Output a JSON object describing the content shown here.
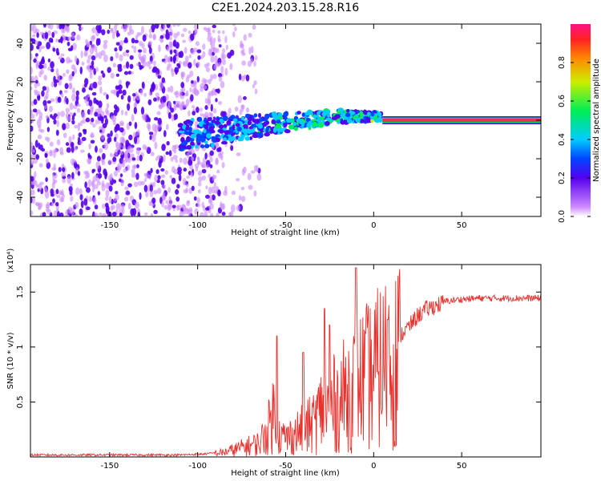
{
  "title": "C2E1.2024.203.15.28.R16",
  "colors": {
    "snr_line": "#e8302c",
    "frame": "#000000",
    "ridge": "#e8305a",
    "ridge_halo": "#10d060"
  },
  "chart_data": [
    {
      "type": "heatmap",
      "xlabel": "Height of straight line (km)",
      "ylabel": "Frequency (Hz)",
      "xlim": [
        -195,
        95
      ],
      "ylim": [
        -50,
        50
      ],
      "x_ticks": [
        -150,
        -100,
        -50,
        0,
        50
      ],
      "y_ticks": [
        -40,
        -20,
        0,
        20,
        40
      ],
      "colorbar": {
        "label": "Normalized spectral amplitude",
        "range": [
          0,
          1
        ],
        "ticks": [
          "0.0",
          "0.2",
          "0.4",
          "0.6",
          "0.8"
        ]
      },
      "features": {
        "noise_region_x": [
          -195,
          -85
        ],
        "emerging_signal_x": [
          -110,
          5
        ],
        "steady_tone_x": [
          5,
          95
        ],
        "steady_tone_freq": 0,
        "steady_tone_amplitude": 1.0
      }
    },
    {
      "type": "line",
      "xlabel": "Height of straight line (km)",
      "ylabel": "SNR (10 * v/v)",
      "y_multiplier": "(x10⁴)",
      "xlim": [
        -195,
        95
      ],
      "ylim": [
        0,
        1.75
      ],
      "x_ticks": [
        -150,
        -100,
        -50,
        0,
        50
      ],
      "y_ticks": [
        0.5,
        1.0,
        1.5
      ],
      "envelope": {
        "x": [
          -195,
          -110,
          -95,
          -85,
          -75,
          -65,
          -60,
          -57,
          -55,
          -50,
          -45,
          -40,
          -35,
          -30,
          -25,
          -20,
          -15,
          -10,
          -5,
          0,
          5,
          10,
          15,
          20,
          25,
          30,
          40,
          50,
          60,
          70,
          80,
          95
        ],
        "y": [
          0.02,
          0.02,
          0.03,
          0.05,
          0.1,
          0.15,
          0.3,
          0.5,
          0.25,
          0.2,
          0.25,
          0.3,
          0.35,
          0.5,
          0.55,
          0.6,
          0.7,
          0.8,
          0.85,
          0.9,
          1.0,
          1.05,
          1.12,
          1.2,
          1.3,
          1.36,
          1.42,
          1.44,
          1.45,
          1.45,
          1.45,
          1.45
        ]
      },
      "spikes": [
        {
          "x": -55,
          "y": 1.1
        },
        {
          "x": -40,
          "y": 0.95
        },
        {
          "x": -28,
          "y": 1.35
        },
        {
          "x": -25,
          "y": 1.2
        },
        {
          "x": -10,
          "y": 1.72
        },
        {
          "x": 8,
          "y": 1.25
        }
      ]
    }
  ]
}
